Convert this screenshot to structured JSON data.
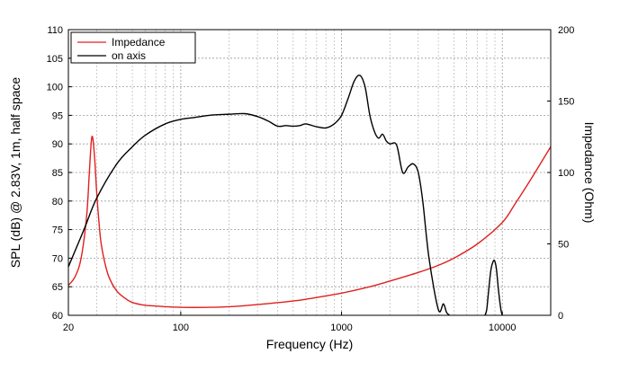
{
  "chart_data": {
    "type": "line",
    "xlabel": "Frequency (Hz)",
    "ylabel_left": "SPL (dB) @ 2.83V, 1m, half space",
    "ylabel_right": "Impedance (Ohm)",
    "x_scale": "log",
    "xlim": [
      20,
      20000
    ],
    "ylim_left": [
      60,
      110
    ],
    "ylim_right": [
      0,
      200
    ],
    "x_ticks": [
      20,
      100,
      1000,
      10000
    ],
    "x_tick_labels": [
      "20",
      "100",
      "1000",
      "10000"
    ],
    "y_left_ticks": [
      60,
      65,
      70,
      75,
      80,
      85,
      90,
      95,
      100,
      105,
      110
    ],
    "y_left_tick_labels": [
      "60",
      "65",
      "70",
      "75",
      "80",
      "85",
      "90",
      "95",
      "100",
      "105",
      "110"
    ],
    "y_right_ticks": [
      0,
      50,
      100,
      150,
      200
    ],
    "y_right_tick_labels": [
      "0",
      "50",
      "100",
      "150",
      "200"
    ],
    "grid": true,
    "legend_position": "top-left",
    "series": [
      {
        "name": "Impedance",
        "axis": "right",
        "color": "#e02020",
        "x": [
          20,
          22,
          24,
          26,
          27,
          28,
          29,
          30,
          31,
          32,
          34,
          36,
          40,
          45,
          50,
          60,
          70,
          80,
          100,
          120,
          150,
          200,
          300,
          500,
          700,
          1000,
          1500,
          2000,
          3000,
          4000,
          5000,
          7000,
          10000,
          12000,
          15000,
          20000
        ],
        "values": [
          21,
          27,
          40,
          70,
          100,
          125,
          113,
          86,
          65,
          50,
          35,
          26,
          17,
          12,
          9,
          7,
          6.5,
          6,
          5.6,
          5.5,
          5.6,
          6,
          7.5,
          10,
          12.5,
          15.5,
          20,
          24,
          30,
          35,
          40,
          50,
          65,
          78,
          95,
          118
        ]
      },
      {
        "name": "on axis",
        "axis": "left",
        "color": "#000000",
        "x": [
          20,
          25,
          30,
          40,
          50,
          60,
          80,
          100,
          120,
          150,
          200,
          250,
          300,
          350,
          400,
          450,
          500,
          550,
          600,
          700,
          800,
          900,
          1000,
          1100,
          1200,
          1300,
          1400,
          1500,
          1600,
          1700,
          1800,
          1900,
          2000,
          2200,
          2400,
          2600,
          2800,
          3000,
          3200,
          3500,
          4000,
          4300,
          4500,
          4700
        ],
        "values": [
          68.5,
          75,
          80.5,
          86.5,
          89.5,
          91.5,
          93.5,
          94.3,
          94.6,
          95,
          95.2,
          95.3,
          94.8,
          94,
          93.1,
          93.2,
          93.1,
          93.2,
          93.5,
          93,
          92.8,
          93.5,
          95,
          98,
          101,
          102,
          100,
          95,
          92.2,
          91,
          91.7,
          90.5,
          90,
          89.8,
          85,
          86,
          86.5,
          85,
          80,
          70,
          61,
          62,
          60.5,
          60
        ]
      },
      {
        "name": "",
        "axis": "left",
        "color": "#000000",
        "x": [
          7800,
          8000,
          8200,
          8500,
          8800,
          9000,
          9200,
          9500,
          9800,
          10000
        ],
        "values": [
          60,
          61,
          64,
          68,
          69.5,
          69.4,
          68,
          64,
          61,
          60
        ]
      }
    ]
  }
}
